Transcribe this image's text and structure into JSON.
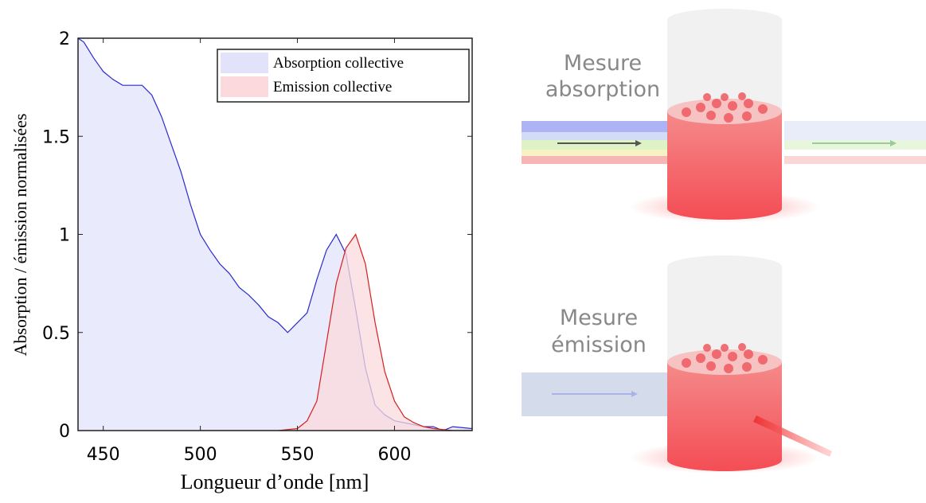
{
  "chart_data": {
    "type": "area",
    "xlabel": "Longueur d’onde [nm]",
    "ylabel": "Absorption / émission normalisées",
    "xlim": [
      437,
      640
    ],
    "xticks": [
      450,
      500,
      550,
      600
    ],
    "ylim": [
      0,
      2
    ],
    "yticks": [
      0,
      0.5,
      1,
      1.5,
      2
    ],
    "legend": "upper right",
    "series": [
      {
        "name": "Absorption collective",
        "color": "#2a2ad0",
        "fill": "#e2e3fa",
        "x": [
          437,
          440,
          445,
          450,
          455,
          460,
          465,
          470,
          475,
          480,
          485,
          490,
          495,
          500,
          505,
          510,
          515,
          520,
          525,
          530,
          535,
          540,
          545,
          550,
          555,
          560,
          565,
          570,
          575,
          580,
          585,
          590,
          595,
          600,
          605,
          610,
          615,
          620,
          625,
          630,
          640
        ],
        "values": [
          2.0,
          1.98,
          1.9,
          1.83,
          1.79,
          1.76,
          1.76,
          1.76,
          1.71,
          1.6,
          1.46,
          1.32,
          1.15,
          1.0,
          0.92,
          0.85,
          0.8,
          0.73,
          0.69,
          0.64,
          0.58,
          0.55,
          0.5,
          0.55,
          0.6,
          0.77,
          0.92,
          1.0,
          0.9,
          0.62,
          0.32,
          0.13,
          0.08,
          0.05,
          0.04,
          0.03,
          0.02,
          0.02,
          0.0,
          0.02,
          0.01
        ]
      },
      {
        "name": "Emission collective",
        "color": "#d42020",
        "fill": "#fbd9dc",
        "x": [
          500,
          520,
          540,
          550,
          555,
          560,
          565,
          570,
          575,
          580,
          585,
          590,
          595,
          600,
          605,
          610,
          615,
          620,
          630,
          640
        ],
        "values": [
          0,
          0,
          0,
          0.01,
          0.05,
          0.15,
          0.45,
          0.75,
          0.93,
          1.0,
          0.85,
          0.55,
          0.3,
          0.15,
          0.07,
          0.04,
          0.02,
          0.01,
          0.0,
          0.0
        ]
      }
    ]
  },
  "diagram": {
    "top_label": [
      "Mesure",
      "absorption"
    ],
    "bottom_label": [
      "Mesure",
      "émission"
    ]
  }
}
